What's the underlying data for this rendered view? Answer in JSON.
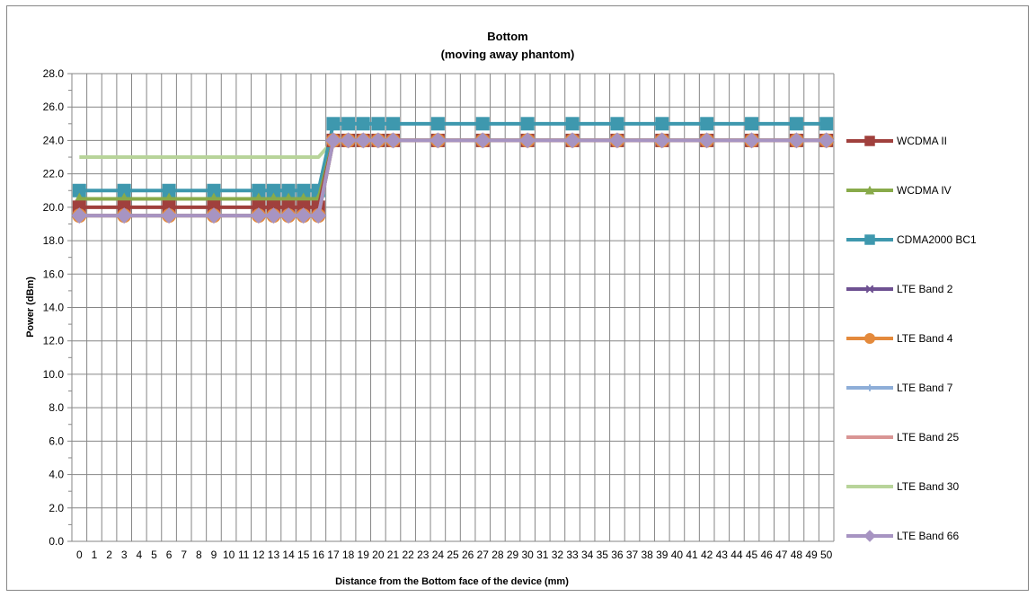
{
  "chart_data": {
    "type": "line",
    "title": "Bottom",
    "subtitle": "(moving away phantom)",
    "xlabel": "Distance from the Bottom face of the device (mm)",
    "ylabel": "Power (dBm)",
    "ylim": [
      0,
      28
    ],
    "y_ticks": [
      "0.0",
      "2.0",
      "4.0",
      "6.0",
      "8.0",
      "10.0",
      "12.0",
      "14.0",
      "16.0",
      "18.0",
      "20.0",
      "22.0",
      "24.0",
      "26.0",
      "28.0"
    ],
    "x_categories": [
      "0",
      "1",
      "2",
      "3",
      "4",
      "5",
      "6",
      "7",
      "8",
      "9",
      "10",
      "11",
      "12",
      "13",
      "14",
      "15",
      "16",
      "17",
      "18",
      "19",
      "20",
      "21",
      "22",
      "23",
      "24",
      "25",
      "26",
      "27",
      "28",
      "29",
      "30",
      "31",
      "32",
      "33",
      "34",
      "35",
      "36",
      "37",
      "38",
      "39",
      "40",
      "41",
      "42",
      "43",
      "44",
      "45",
      "46",
      "47",
      "48",
      "49",
      "50"
    ],
    "grid": true,
    "legend_position": "right",
    "series": [
      {
        "name": "WCDMA II",
        "color": "#A0403D",
        "marker": "square",
        "x": [
          0,
          3,
          6,
          9,
          12,
          13,
          14,
          15,
          16,
          17,
          18,
          19,
          20,
          21,
          24,
          27,
          30,
          33,
          36,
          39,
          42,
          45,
          48,
          50
        ],
        "values": [
          20,
          20,
          20,
          20,
          20,
          20,
          20,
          20,
          20,
          24,
          24,
          24,
          24,
          24,
          24,
          24,
          24,
          24,
          24,
          24,
          24,
          24,
          24,
          24
        ]
      },
      {
        "name": "WCDMA IV",
        "color": "#88AA4A",
        "marker": "triangle",
        "x": [
          0,
          3,
          6,
          9,
          12,
          13,
          14,
          15,
          16,
          17,
          18,
          19,
          20,
          21,
          24,
          27,
          30,
          33,
          36,
          39,
          42,
          45,
          48,
          50
        ],
        "values": [
          20.5,
          20.5,
          20.5,
          20.5,
          20.5,
          20.5,
          20.5,
          20.5,
          20.5,
          24,
          24,
          24,
          24,
          24,
          24,
          24,
          24,
          24,
          24,
          24,
          24,
          24,
          24,
          24
        ]
      },
      {
        "name": "CDMA2000 BC1",
        "color": "#3E98AE",
        "marker": "square",
        "x": [
          0,
          3,
          6,
          9,
          12,
          13,
          14,
          15,
          16,
          17,
          18,
          19,
          20,
          21,
          24,
          27,
          30,
          33,
          36,
          39,
          42,
          45,
          48,
          50
        ],
        "values": [
          21,
          21,
          21,
          21,
          21,
          21,
          21,
          21,
          21,
          25,
          25,
          25,
          25,
          25,
          25,
          25,
          25,
          25,
          25,
          25,
          25,
          25,
          25,
          25
        ]
      },
      {
        "name": "LTE Band 2",
        "color": "#6E5192",
        "marker": "x",
        "x": [
          0,
          3,
          6,
          9,
          12,
          13,
          14,
          15,
          16,
          17,
          18,
          19,
          20,
          21,
          24,
          27,
          30,
          33,
          36,
          39,
          42,
          45,
          48,
          50
        ],
        "values": [
          19.5,
          19.5,
          19.5,
          19.5,
          19.5,
          19.5,
          19.5,
          19.5,
          19.5,
          24,
          24,
          24,
          24,
          24,
          24,
          24,
          24,
          24,
          24,
          24,
          24,
          24,
          24,
          24
        ]
      },
      {
        "name": "LTE Band 4",
        "color": "#E48A3C",
        "marker": "circle",
        "x": [
          0,
          3,
          6,
          9,
          12,
          13,
          14,
          15,
          16,
          17,
          18,
          19,
          20,
          21,
          24,
          27,
          30,
          33,
          36,
          39,
          42,
          45,
          48,
          50
        ],
        "values": [
          19.5,
          19.5,
          19.5,
          19.5,
          19.5,
          19.5,
          19.5,
          19.5,
          19.5,
          24,
          24,
          24,
          24,
          24,
          24,
          24,
          24,
          24,
          24,
          24,
          24,
          24,
          24,
          24
        ]
      },
      {
        "name": "LTE Band 7",
        "color": "#8EAED8",
        "marker": "plus",
        "x": [
          0,
          3,
          6,
          9,
          12,
          13,
          14,
          15,
          16,
          17,
          18,
          19,
          20,
          21,
          24,
          27,
          30,
          33,
          36,
          39,
          42,
          45,
          48,
          50
        ],
        "values": [
          19.5,
          19.5,
          19.5,
          19.5,
          19.5,
          19.5,
          19.5,
          19.5,
          19.5,
          24,
          24,
          24,
          24,
          24,
          24,
          24,
          24,
          24,
          24,
          24,
          24,
          24,
          24,
          24
        ]
      },
      {
        "name": "LTE Band 25",
        "color": "#D99594",
        "marker": "none",
        "x": [
          0,
          3,
          6,
          9,
          12,
          13,
          14,
          15,
          16,
          17,
          18,
          19,
          20,
          21,
          24,
          27,
          30,
          33,
          36,
          39,
          42,
          45,
          48,
          50
        ],
        "values": [
          19.5,
          19.5,
          19.5,
          19.5,
          19.5,
          19.5,
          19.5,
          19.5,
          19.5,
          24,
          24,
          24,
          24,
          24,
          24,
          24,
          24,
          24,
          24,
          24,
          24,
          24,
          24,
          24
        ]
      },
      {
        "name": "LTE Band 30",
        "color": "#B8D49A",
        "marker": "none",
        "x": [
          0,
          16,
          17,
          50
        ],
        "values": [
          23,
          23,
          24,
          24
        ]
      },
      {
        "name": "LTE Band 66",
        "color": "#A794C2",
        "marker": "diamond",
        "x": [
          0,
          3,
          6,
          9,
          12,
          13,
          14,
          15,
          16,
          17,
          18,
          19,
          20,
          21,
          24,
          27,
          30,
          33,
          36,
          39,
          42,
          45,
          48,
          50
        ],
        "values": [
          19.5,
          19.5,
          19.5,
          19.5,
          19.5,
          19.5,
          19.5,
          19.5,
          19.5,
          24,
          24,
          24,
          24,
          24,
          24,
          24,
          24,
          24,
          24,
          24,
          24,
          24,
          24,
          24
        ]
      }
    ]
  }
}
